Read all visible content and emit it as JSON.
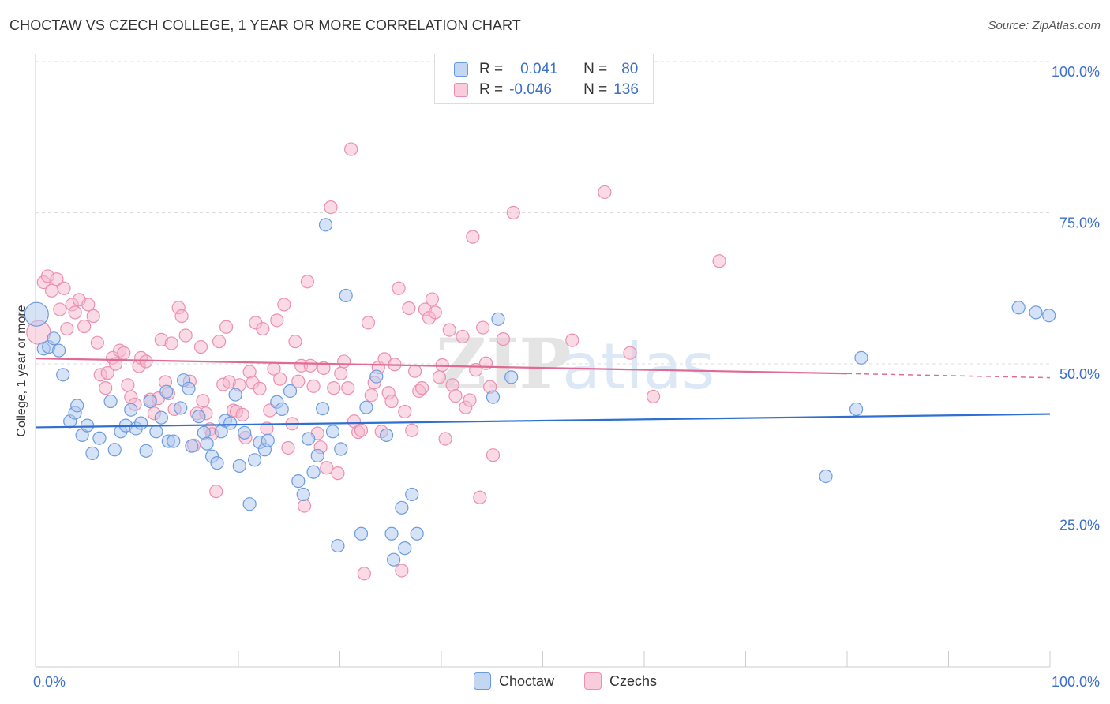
{
  "title": "CHOCTAW VS CZECH COLLEGE, 1 YEAR OR MORE CORRELATION CHART",
  "source": "Source: ZipAtlas.com",
  "watermark": {
    "bold": "ZIP",
    "light": "atlas"
  },
  "legend": {
    "rows": [
      {
        "series": "Choctaw",
        "r_label": "R =",
        "r_value": "0.041",
        "n_label": "N =",
        "n_value": "80"
      },
      {
        "series": "Czechs",
        "r_label": "R =",
        "r_value": "-0.046",
        "n_label": "N =",
        "n_value": "136"
      }
    ]
  },
  "colors": {
    "choctaw_fill": "#adc8ef",
    "choctaw_stroke": "#6b9be0",
    "choctaw_line": "#2f6fd0",
    "czech_fill": "#f6b8cc",
    "czech_stroke": "#ec8fae",
    "czech_line": "#e06a96",
    "tick_text": "#3b6fc9",
    "grid": "#dddddd"
  },
  "chart_data": {
    "type": "scatter",
    "xlabel": "",
    "ylabel": "College, 1 year or more",
    "xlim": [
      0,
      100
    ],
    "ylim": [
      0,
      102
    ],
    "x_tick_labels": [
      {
        "value": 0,
        "label": "0.0%"
      },
      {
        "value": 100,
        "label": "100.0%"
      }
    ],
    "y_tick_labels": [
      {
        "value": 25,
        "label": "25.0%"
      },
      {
        "value": 50,
        "label": "50.0%"
      },
      {
        "value": 75,
        "label": "75.0%"
      },
      {
        "value": 100,
        "label": "100.0%"
      }
    ],
    "grid": "horizontal dashed",
    "legend_position": "top-center and bottom",
    "series": [
      {
        "name": "Choctaw",
        "trend": {
          "x": [
            0,
            100
          ],
          "y": [
            39.5,
            41.7
          ]
        },
        "points": [
          [
            0.1,
            58.2
          ],
          [
            0.8,
            52.5
          ],
          [
            1.3,
            52.8
          ],
          [
            1.8,
            54.2
          ],
          [
            2.3,
            52.2
          ],
          [
            2.7,
            48.2
          ],
          [
            3.4,
            40.5
          ],
          [
            3.9,
            41.9
          ],
          [
            4.1,
            43.1
          ],
          [
            4.6,
            38.2
          ],
          [
            5.1,
            39.8
          ],
          [
            5.6,
            35.2
          ],
          [
            6.3,
            37.7
          ],
          [
            7.4,
            43.8
          ],
          [
            7.8,
            35.8
          ],
          [
            8.4,
            38.8
          ],
          [
            8.9,
            39.8
          ],
          [
            9.4,
            42.4
          ],
          [
            9.9,
            39.3
          ],
          [
            10.4,
            40.2
          ],
          [
            10.9,
            35.6
          ],
          [
            11.3,
            43.8
          ],
          [
            11.9,
            38.8
          ],
          [
            12.4,
            41.1
          ],
          [
            12.9,
            45.4
          ],
          [
            13.1,
            37.2
          ],
          [
            13.6,
            37.2
          ],
          [
            14.3,
            42.7
          ],
          [
            14.6,
            47.3
          ],
          [
            15.1,
            45.9
          ],
          [
            15.4,
            36.4
          ],
          [
            16.1,
            41.3
          ],
          [
            16.6,
            38.6
          ],
          [
            16.9,
            36.8
          ],
          [
            17.4,
            34.7
          ],
          [
            17.9,
            33.6
          ],
          [
            18.3,
            38.8
          ],
          [
            18.7,
            40.6
          ],
          [
            19.2,
            40.2
          ],
          [
            19.7,
            44.9
          ],
          [
            20.1,
            33.1
          ],
          [
            20.6,
            38.6
          ],
          [
            21.1,
            26.8
          ],
          [
            21.6,
            34.1
          ],
          [
            22.1,
            37.0
          ],
          [
            22.6,
            35.8
          ],
          [
            22.9,
            37.3
          ],
          [
            23.8,
            43.7
          ],
          [
            24.3,
            42.5
          ],
          [
            25.1,
            45.5
          ],
          [
            25.9,
            30.6
          ],
          [
            26.4,
            28.4
          ],
          [
            26.9,
            37.6
          ],
          [
            27.4,
            32.1
          ],
          [
            27.8,
            34.8
          ],
          [
            28.3,
            42.6
          ],
          [
            28.6,
            73.0
          ],
          [
            29.3,
            38.8
          ],
          [
            29.8,
            19.9
          ],
          [
            30.1,
            35.9
          ],
          [
            30.6,
            61.3
          ],
          [
            32.1,
            21.9
          ],
          [
            32.6,
            42.8
          ],
          [
            33.6,
            47.9
          ],
          [
            34.6,
            38.2
          ],
          [
            35.1,
            21.9
          ],
          [
            35.3,
            17.6
          ],
          [
            36.1,
            26.2
          ],
          [
            36.4,
            19.5
          ],
          [
            37.1,
            28.4
          ],
          [
            37.6,
            21.9
          ],
          [
            45.1,
            44.5
          ],
          [
            45.6,
            57.4
          ],
          [
            46.9,
            47.8
          ],
          [
            77.9,
            31.4
          ],
          [
            80.9,
            42.5
          ],
          [
            81.4,
            51.0
          ],
          [
            96.9,
            59.3
          ],
          [
            98.6,
            58.5
          ],
          [
            99.9,
            58.0
          ]
        ]
      },
      {
        "name": "Czechs",
        "trend": {
          "x": [
            0,
            80
          ],
          "y": [
            50.9,
            48.4
          ]
        },
        "dashed_extension": {
          "x": [
            80,
            100
          ],
          "y": [
            48.4,
            47.7
          ]
        },
        "points": [
          [
            0.3,
            55.2
          ],
          [
            0.8,
            63.5
          ],
          [
            1.2,
            64.5
          ],
          [
            1.6,
            62.1
          ],
          [
            2.1,
            64.0
          ],
          [
            2.4,
            59.0
          ],
          [
            2.8,
            62.5
          ],
          [
            3.1,
            55.8
          ],
          [
            3.6,
            59.8
          ],
          [
            3.9,
            58.5
          ],
          [
            4.3,
            60.6
          ],
          [
            4.8,
            56.2
          ],
          [
            5.2,
            59.8
          ],
          [
            5.7,
            57.9
          ],
          [
            6.1,
            53.5
          ],
          [
            6.4,
            48.2
          ],
          [
            6.9,
            46.0
          ],
          [
            7.1,
            48.5
          ],
          [
            7.6,
            51.0
          ],
          [
            7.9,
            50.0
          ],
          [
            8.3,
            52.2
          ],
          [
            8.7,
            51.8
          ],
          [
            9.1,
            46.5
          ],
          [
            9.4,
            44.5
          ],
          [
            9.8,
            43.3
          ],
          [
            10.2,
            49.6
          ],
          [
            10.4,
            51.0
          ],
          [
            10.9,
            50.4
          ],
          [
            11.3,
            44.1
          ],
          [
            11.7,
            41.8
          ],
          [
            12.1,
            44.3
          ],
          [
            12.4,
            54.0
          ],
          [
            12.8,
            47.0
          ],
          [
            13.1,
            45.1
          ],
          [
            13.4,
            53.4
          ],
          [
            13.7,
            42.5
          ],
          [
            14.1,
            59.3
          ],
          [
            14.4,
            57.9
          ],
          [
            14.8,
            54.7
          ],
          [
            15.2,
            47.1
          ],
          [
            15.6,
            36.5
          ],
          [
            15.9,
            41.8
          ],
          [
            16.3,
            52.8
          ],
          [
            16.5,
            43.9
          ],
          [
            16.8,
            41.8
          ],
          [
            17.2,
            39.2
          ],
          [
            17.4,
            38.4
          ],
          [
            17.8,
            28.9
          ],
          [
            18.1,
            53.7
          ],
          [
            18.5,
            46.6
          ],
          [
            18.8,
            56.1
          ],
          [
            19.1,
            47.0
          ],
          [
            19.5,
            42.3
          ],
          [
            19.8,
            42.1
          ],
          [
            20.1,
            46.5
          ],
          [
            20.4,
            41.6
          ],
          [
            20.7,
            37.8
          ],
          [
            21.1,
            48.7
          ],
          [
            21.4,
            46.9
          ],
          [
            21.7,
            56.8
          ],
          [
            22.1,
            45.9
          ],
          [
            22.4,
            55.8
          ],
          [
            22.8,
            39.3
          ],
          [
            23.1,
            42.3
          ],
          [
            23.5,
            49.2
          ],
          [
            23.8,
            57.2
          ],
          [
            24.1,
            47.5
          ],
          [
            24.5,
            59.8
          ],
          [
            24.9,
            36.1
          ],
          [
            25.3,
            40.1
          ],
          [
            25.6,
            53.7
          ],
          [
            25.9,
            47.1
          ],
          [
            26.2,
            49.7
          ],
          [
            26.5,
            26.5
          ],
          [
            26.8,
            63.6
          ],
          [
            27.1,
            49.7
          ],
          [
            27.4,
            46.3
          ],
          [
            27.8,
            38.5
          ],
          [
            28.1,
            36.2
          ],
          [
            28.4,
            49.3
          ],
          [
            28.7,
            32.8
          ],
          [
            29.1,
            75.9
          ],
          [
            29.4,
            46.0
          ],
          [
            29.8,
            31.9
          ],
          [
            30.1,
            48.4
          ],
          [
            30.4,
            50.4
          ],
          [
            30.8,
            46.0
          ],
          [
            31.1,
            85.5
          ],
          [
            31.4,
            40.5
          ],
          [
            31.8,
            38.7
          ],
          [
            32.1,
            39.0
          ],
          [
            32.4,
            15.3
          ],
          [
            32.8,
            56.8
          ],
          [
            33.1,
            44.8
          ],
          [
            33.4,
            46.9
          ],
          [
            33.8,
            49.4
          ],
          [
            34.1,
            38.8
          ],
          [
            34.4,
            50.8
          ],
          [
            34.8,
            45.2
          ],
          [
            35.1,
            43.8
          ],
          [
            35.4,
            49.9
          ],
          [
            35.8,
            62.5
          ],
          [
            36.1,
            15.8
          ],
          [
            36.4,
            42.1
          ],
          [
            36.8,
            59.2
          ],
          [
            37.1,
            39.0
          ],
          [
            37.4,
            48.8
          ],
          [
            37.8,
            45.5
          ],
          [
            38.1,
            46.0
          ],
          [
            38.4,
            59.0
          ],
          [
            38.8,
            57.6
          ],
          [
            39.1,
            60.7
          ],
          [
            39.4,
            58.5
          ],
          [
            39.8,
            47.8
          ],
          [
            40.1,
            49.8
          ],
          [
            40.4,
            37.6
          ],
          [
            40.8,
            55.6
          ],
          [
            41.1,
            46.5
          ],
          [
            41.4,
            44.7
          ],
          [
            42.1,
            54.5
          ],
          [
            42.4,
            42.8
          ],
          [
            42.8,
            44.0
          ],
          [
            43.1,
            71.0
          ],
          [
            43.4,
            49.0
          ],
          [
            43.8,
            27.9
          ],
          [
            44.1,
            56.0
          ],
          [
            44.4,
            50.1
          ],
          [
            44.8,
            46.2
          ],
          [
            45.1,
            34.9
          ],
          [
            46.1,
            54.1
          ],
          [
            47.1,
            75.0
          ],
          [
            52.9,
            53.9
          ],
          [
            56.1,
            78.4
          ],
          [
            58.6,
            51.8
          ],
          [
            60.9,
            44.6
          ],
          [
            67.4,
            67.0
          ]
        ]
      }
    ]
  }
}
